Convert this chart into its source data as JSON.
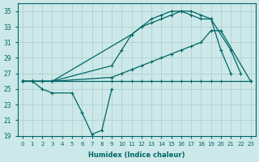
{
  "xlabel": "Humidex (Indice chaleur)",
  "bg_color": "#cce8e8",
  "grid_color": "#aacccc",
  "line_color": "#006666",
  "ylim": [
    19,
    36
  ],
  "xlim": [
    -0.5,
    23.5
  ],
  "yticks": [
    19,
    21,
    23,
    25,
    27,
    29,
    31,
    33,
    35
  ],
  "xticks": [
    0,
    1,
    2,
    3,
    4,
    5,
    6,
    7,
    8,
    9,
    10,
    11,
    12,
    13,
    14,
    15,
    16,
    17,
    18,
    19,
    20,
    21,
    22,
    23
  ],
  "line_dip_x": [
    0,
    1,
    2,
    3,
    5,
    6,
    7,
    8,
    9
  ],
  "line_dip_y": [
    26,
    26,
    25,
    24.5,
    24.5,
    22,
    19.2,
    19.7,
    25
  ],
  "line_flat_x": [
    0,
    1,
    2,
    3,
    9,
    10,
    11,
    12,
    13,
    14,
    15,
    16,
    17,
    18,
    19,
    20,
    23
  ],
  "line_flat_y": [
    26,
    26,
    26,
    26,
    26,
    26,
    26,
    26,
    26,
    26,
    26,
    26,
    26,
    26,
    26,
    26,
    26
  ],
  "line_low_x": [
    0,
    1,
    2,
    3,
    9,
    10,
    11,
    12,
    13,
    14,
    15,
    16,
    17,
    18,
    19,
    20,
    23
  ],
  "line_low_y": [
    26,
    26,
    26,
    26,
    26.5,
    27,
    27.5,
    28,
    28.5,
    29,
    29.5,
    30,
    30.5,
    31,
    32.5,
    32.5,
    26
  ],
  "line_mid_x": [
    0,
    1,
    2,
    3,
    9,
    10,
    11,
    12,
    13,
    14,
    15,
    16,
    17,
    18,
    19,
    21,
    22
  ],
  "line_mid_y": [
    26,
    26,
    26,
    26,
    28,
    30,
    32,
    33,
    33.5,
    34,
    34.5,
    35,
    34.5,
    34,
    34,
    30,
    27
  ],
  "line_high_x": [
    0,
    1,
    2,
    3,
    11,
    12,
    13,
    14,
    15,
    16,
    17,
    18,
    19,
    20,
    21
  ],
  "line_high_y": [
    26,
    26,
    26,
    26,
    32,
    33,
    34,
    34.5,
    35,
    35,
    35,
    34.5,
    34,
    30,
    27
  ]
}
